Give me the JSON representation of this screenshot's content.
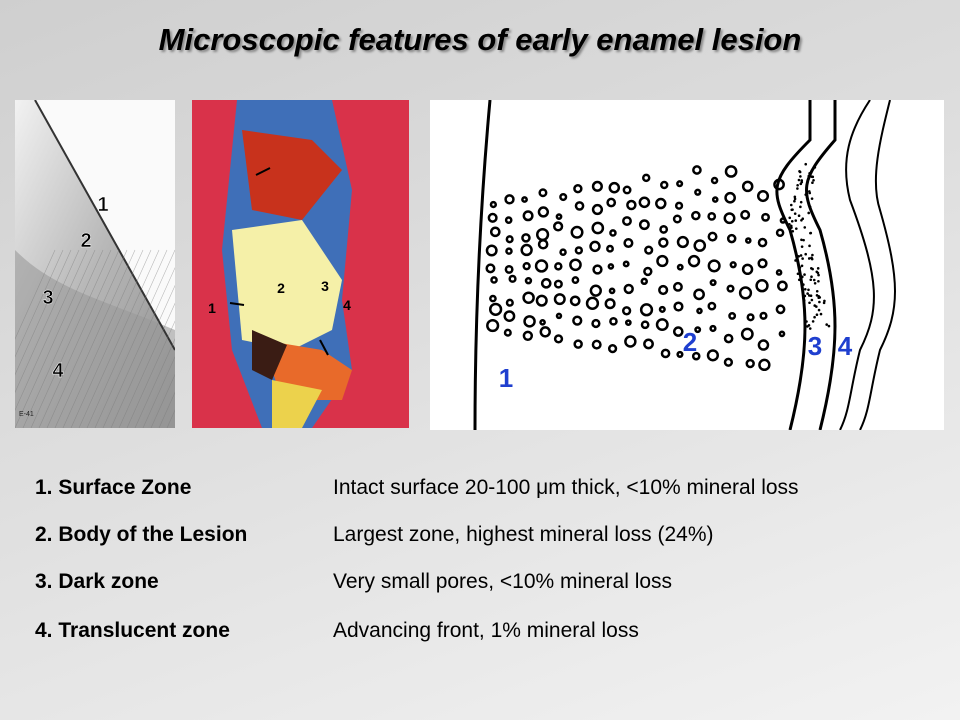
{
  "title": "Microscopic features of early enamel lesion",
  "figures": [
    {
      "labels": [
        "1",
        "2",
        "3",
        "4"
      ],
      "code": "E-41"
    },
    {
      "labels": [
        "1",
        "2",
        "3",
        "4"
      ]
    },
    {
      "labels": [
        "1",
        "2",
        "3",
        "4"
      ]
    }
  ],
  "zones": [
    {
      "name": "1. Surface Zone",
      "description": "Intact surface 20-100 μm thick, <10% mineral loss"
    },
    {
      "name": "2. Body of the Lesion",
      "description": "Largest zone, highest mineral loss (24%)"
    },
    {
      "name": "3. Dark zone",
      "description": "Very small pores, <10% mineral loss"
    },
    {
      "name": "4. Translucent zone",
      "description": "Advancing front, 1% mineral loss"
    }
  ]
}
